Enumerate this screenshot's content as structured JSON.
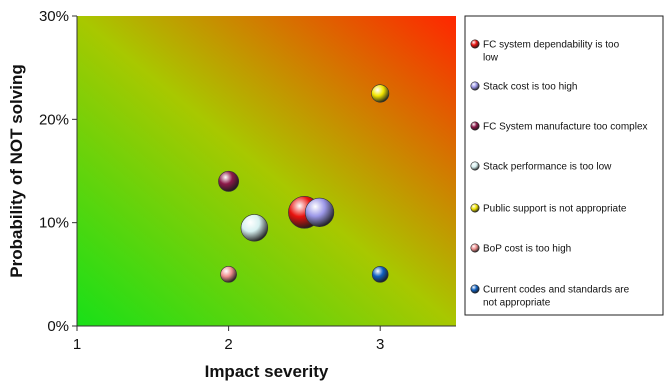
{
  "chart_data": {
    "type": "scatter",
    "subtype": "bubble",
    "xlabel": "Impact severity",
    "ylabel": "Probability of NOT solving",
    "xlim": [
      1,
      3.5
    ],
    "ylim": [
      0,
      30
    ],
    "x_ticks": [
      "1",
      "2",
      "3"
    ],
    "x_tick_values": [
      1,
      2,
      3
    ],
    "y_ticks": [
      "0%",
      "10%",
      "20%",
      "30%"
    ],
    "y_tick_values": [
      0,
      10,
      20,
      30
    ],
    "y_unit": "%",
    "grid": false,
    "background": "gradient green (bottom-left) to red (top-right)",
    "legend_position": "right",
    "series": [
      {
        "name": "FC system  dependability is too low",
        "x": 2.5,
        "y": 11,
        "size": 10,
        "color": "#e8120e"
      },
      {
        "name": "Stack cost is too high",
        "x": 2.6,
        "y": 11,
        "size": 8,
        "color": "#9c98e8"
      },
      {
        "name": "FC System manufacture too complex",
        "x": 2.0,
        "y": 14,
        "size": 4,
        "color": "#8c1a4a"
      },
      {
        "name": "Stack performance is too low",
        "x": 2.17,
        "y": 9.5,
        "size": 7,
        "color": "#d6f0f0"
      },
      {
        "name": "Public support is not appropriate",
        "x": 3.0,
        "y": 22.5,
        "size": 3,
        "color": "#f2e600"
      },
      {
        "name": "BoP cost is too high",
        "x": 2.0,
        "y": 5,
        "size": 2.5,
        "color": "#f09090"
      },
      {
        "name": "Current codes and standards are not appropriate",
        "x": 3.0,
        "y": 5,
        "size": 2.5,
        "color": "#1060c0"
      }
    ]
  }
}
